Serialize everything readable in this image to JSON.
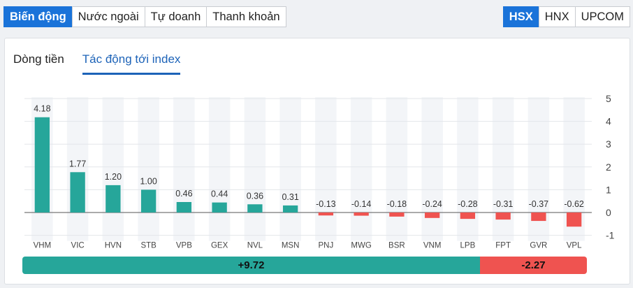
{
  "segments_left": [
    {
      "label": "Biến động",
      "active": true
    },
    {
      "label": "Nước ngoài",
      "active": false
    },
    {
      "label": "Tự doanh",
      "active": false
    },
    {
      "label": "Thanh khoản",
      "active": false
    }
  ],
  "segments_right": [
    {
      "label": "HSX",
      "active": true
    },
    {
      "label": "HNX",
      "active": false
    },
    {
      "label": "UPCOM",
      "active": false
    }
  ],
  "tabs": [
    {
      "label": "Dòng tiền",
      "active": false
    },
    {
      "label": "Tác động tới index",
      "active": true
    }
  ],
  "colors": {
    "positive": "#26a69a",
    "negative": "#ef5350",
    "accent": "#1a73d9"
  },
  "chart_data": {
    "type": "bar",
    "categories": [
      "VHM",
      "VIC",
      "HVN",
      "STB",
      "VPB",
      "GEX",
      "NVL",
      "MSN",
      "PNJ",
      "MWG",
      "BSR",
      "VNM",
      "LPB",
      "FPT",
      "GVR",
      "VPL"
    ],
    "values": [
      4.18,
      1.77,
      1.2,
      1.0,
      0.46,
      0.44,
      0.36,
      0.31,
      -0.13,
      -0.14,
      -0.18,
      -0.24,
      -0.28,
      -0.31,
      -0.37,
      -0.62
    ],
    "value_labels": [
      "4.18",
      "1.77",
      "1.20",
      "1.00",
      "0.46",
      "0.44",
      "0.36",
      "0.31",
      "-0.13",
      "-0.14",
      "-0.18",
      "-0.24",
      "-0.28",
      "-0.31",
      "-0.37",
      "-0.62"
    ],
    "yticks": [
      "5",
      "4",
      "3",
      "2",
      "1",
      "0",
      "-1"
    ],
    "ylim": [
      -1,
      5
    ],
    "grid": true,
    "y_axis_side": "right"
  },
  "summary": {
    "positive_label": "+9.72",
    "negative_label": "-2.27",
    "positive_total": 9.72,
    "negative_total": 2.27
  }
}
